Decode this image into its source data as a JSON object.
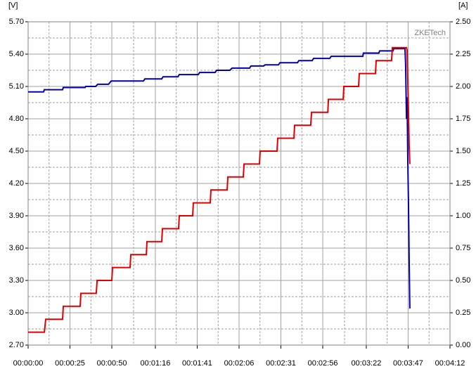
{
  "chart_data": {
    "type": "line",
    "y_unit": "[V]",
    "y2_unit": "[A]",
    "watermark": "ZKETech",
    "xlim": [
      0,
      252
    ],
    "xticks": [
      {
        "value": 0,
        "label": "00:00:00"
      },
      {
        "value": 25,
        "label": "00:00:25"
      },
      {
        "value": 50,
        "label": "00:00:50"
      },
      {
        "value": 76,
        "label": "00:01:16"
      },
      {
        "value": 101,
        "label": "00:01:41"
      },
      {
        "value": 126,
        "label": "00:02:06"
      },
      {
        "value": 151,
        "label": "00:02:31"
      },
      {
        "value": 176,
        "label": "00:02:56"
      },
      {
        "value": 202,
        "label": "00:03:22"
      },
      {
        "value": 227,
        "label": "00:03:47"
      },
      {
        "value": 252,
        "label": "00:04:12"
      }
    ],
    "ylim": [
      2.7,
      5.7
    ],
    "yticks": [
      {
        "value": 2.7,
        "label": "2.70"
      },
      {
        "value": 3.0,
        "label": "3.00"
      },
      {
        "value": 3.3,
        "label": "3.30"
      },
      {
        "value": 3.6,
        "label": "3.60"
      },
      {
        "value": 3.9,
        "label": "3.90"
      },
      {
        "value": 4.2,
        "label": "4.20"
      },
      {
        "value": 4.5,
        "label": "4.50"
      },
      {
        "value": 4.8,
        "label": "4.80"
      },
      {
        "value": 5.1,
        "label": "5.10"
      },
      {
        "value": 5.4,
        "label": "5.40"
      },
      {
        "value": 5.7,
        "label": "5.70"
      }
    ],
    "y2lim": [
      0,
      2.5
    ],
    "y2ticks": [
      {
        "value": 0,
        "label": "0.00"
      },
      {
        "value": 0.25,
        "label": "0.25"
      },
      {
        "value": 0.5,
        "label": "0.50"
      },
      {
        "value": 0.75,
        "label": "0.75"
      },
      {
        "value": 1.0,
        "label": "1.00"
      },
      {
        "value": 1.25,
        "label": "1.25"
      },
      {
        "value": 1.5,
        "label": "1.50"
      },
      {
        "value": 1.75,
        "label": "1.75"
      },
      {
        "value": 2.0,
        "label": "2.00"
      },
      {
        "value": 2.25,
        "label": "2.25"
      },
      {
        "value": 2.5,
        "label": "2.50"
      }
    ],
    "grid": true,
    "series": [
      {
        "color": "#0000b0",
        "x": [
          0,
          9.2,
          9.7,
          20.6,
          21,
          34,
          34.4,
          40.3,
          41.6,
          48,
          49.6,
          68.9,
          69.7,
          79.8,
          80.6,
          89.5,
          90.3,
          101.6,
          102.5,
          111.7,
          112.6,
          120.5,
          121.8,
          132.3,
          133.1,
          140.7,
          141.5,
          149.5,
          150.4,
          160.9,
          161.7,
          169.7,
          170.5,
          180.2,
          181,
          199.9,
          200.3,
          209.5,
          210,
          218,
          218.4,
          225.1,
          225.5,
          226,
          226.4,
          226.8,
          227.2,
          227.6,
          228
        ],
        "values": [
          5.05,
          5.05,
          5.07,
          5.07,
          5.09,
          5.09,
          5.1,
          5.1,
          5.12,
          5.12,
          5.15,
          5.15,
          5.17,
          5.17,
          5.19,
          5.19,
          5.21,
          5.21,
          5.23,
          5.23,
          5.25,
          5.25,
          5.27,
          5.27,
          5.29,
          5.29,
          5.3,
          5.3,
          5.32,
          5.32,
          5.34,
          5.34,
          5.36,
          5.36,
          5.38,
          5.38,
          5.41,
          5.41,
          5.43,
          5.43,
          5.45,
          5.45,
          5.3,
          4.8,
          5.0,
          4.4,
          4.0,
          3.5,
          3.04
        ]
      },
      {
        "color": "#e00000",
        "axis": "y2",
        "x": [
          0,
          9.7,
          10.5,
          20.6,
          21,
          31.1,
          31.5,
          40.7,
          41.2,
          50,
          50.4,
          60.9,
          61.3,
          70.6,
          71,
          79.8,
          80.2,
          89.9,
          90.3,
          98.3,
          98.7,
          108.8,
          109.2,
          118.9,
          119.3,
          128.5,
          129,
          138.2,
          138.6,
          148.7,
          149.1,
          158.8,
          159.2,
          168.8,
          169.3,
          179,
          179.4,
          188.2,
          188.6,
          197.4,
          197.8,
          207.5,
          207.9,
          217.1,
          217.6,
          226,
          226.4,
          227.2,
          227.6,
          228
        ],
        "values": [
          0.1,
          0.1,
          0.2,
          0.2,
          0.3,
          0.3,
          0.4,
          0.4,
          0.5,
          0.5,
          0.6,
          0.6,
          0.7,
          0.7,
          0.8,
          0.8,
          0.9,
          0.9,
          1.0,
          1.0,
          1.1,
          1.1,
          1.2,
          1.2,
          1.3,
          1.3,
          1.4,
          1.4,
          1.5,
          1.5,
          1.6,
          1.6,
          1.7,
          1.7,
          1.8,
          1.8,
          1.9,
          1.9,
          2.0,
          2.0,
          2.1,
          2.1,
          2.2,
          2.2,
          2.3,
          2.3,
          2.28,
          1.8,
          1.55,
          1.4
        ]
      }
    ]
  }
}
